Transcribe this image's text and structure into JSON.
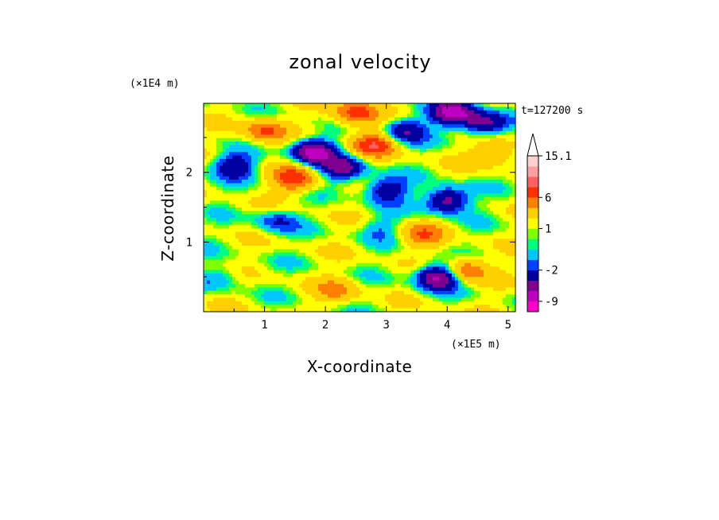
{
  "chart_data": {
    "type": "heatmap",
    "title": "zonal velocity",
    "xlabel": "X-coordinate",
    "ylabel": "Z-coordinate",
    "x_scale_label": "(×1E5 m)",
    "y_scale_label": "(×1E4 m)",
    "time_label": "t=127200 s",
    "xlim": [
      0,
      5.12
    ],
    "ylim": [
      0,
      2.99
    ],
    "x_ticks": [
      1,
      2,
      3,
      4,
      5
    ],
    "x_tick_labels": [
      "1",
      "2",
      "3",
      "4",
      "5"
    ],
    "y_ticks": [
      1,
      2
    ],
    "y_tick_labels": [
      "1",
      "2"
    ],
    "colorbar": {
      "levels": [
        -12,
        -9,
        -6,
        -4,
        -2,
        -1,
        0,
        0.5,
        1,
        2,
        4,
        6,
        8,
        10,
        12,
        15.1
      ],
      "colors": [
        "#ff00cc",
        "#c000c0",
        "#800090",
        "#0000a0",
        "#0040ff",
        "#00c8ff",
        "#00ff80",
        "#80ff00",
        "#ffff00",
        "#ffd000",
        "#ff8000",
        "#ff3000",
        "#ff6060",
        "#ffa0a0",
        "#ffd0d0"
      ],
      "tick_labels": [
        "15.1",
        "6",
        "1",
        "-2",
        "-9"
      ],
      "tick_values": [
        15.1,
        6,
        1,
        -2,
        -9
      ]
    },
    "features": [
      {
        "x": 1.8,
        "z": 2.3,
        "value": -8
      },
      {
        "x": 2.3,
        "z": 2.05,
        "value": -6
      },
      {
        "x": 0.5,
        "z": 2.1,
        "value": -5
      },
      {
        "x": 3.3,
        "z": 2.6,
        "value": -5
      },
      {
        "x": 4.1,
        "z": 2.85,
        "value": -8
      },
      {
        "x": 4.6,
        "z": 2.7,
        "value": -6
      },
      {
        "x": 3.0,
        "z": 1.75,
        "value": -5
      },
      {
        "x": 4.0,
        "z": 1.6,
        "value": -7
      },
      {
        "x": 3.85,
        "z": 0.5,
        "value": -8
      },
      {
        "x": 1.0,
        "z": 2.6,
        "value": 5
      },
      {
        "x": 2.8,
        "z": 2.4,
        "value": 6
      },
      {
        "x": 4.8,
        "z": 2.3,
        "value": 4
      },
      {
        "x": 2.5,
        "z": 2.85,
        "value": 6
      },
      {
        "x": 1.5,
        "z": 1.9,
        "value": 6
      },
      {
        "x": 3.6,
        "z": 1.1,
        "value": 4
      },
      {
        "x": 4.3,
        "z": 0.6,
        "value": 5
      },
      {
        "x": 2.2,
        "z": 0.3,
        "value": 3
      },
      {
        "x": 1.2,
        "z": 1.3,
        "value": -3
      },
      {
        "x": 0.3,
        "z": 0.5,
        "value": -2
      },
      {
        "x": 2.9,
        "z": 1.2,
        "value": -2
      }
    ]
  }
}
